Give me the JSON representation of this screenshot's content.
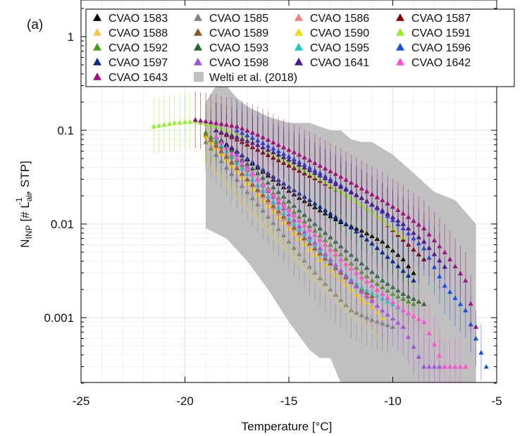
{
  "chart_data": {
    "type": "scatter",
    "panel_label": "(a)",
    "xlabel": "Temperature [°C]",
    "ylabel": {
      "main": "N",
      "sub": "INP",
      "rest": " [# L",
      "sub2": "air",
      "sup": "-1",
      "tail": " , STP]"
    },
    "xlim": [
      -25,
      -5
    ],
    "ylim": [
      0.0002,
      2
    ],
    "yscale": "log",
    "grid": true,
    "legend_position": "top",
    "x_ticks": [
      -25,
      -20,
      -15,
      -10,
      -5
    ],
    "x_tick_labels": [
      "-25",
      "-20",
      "-15",
      "-10",
      "-5"
    ],
    "y_ticks": [
      1,
      0.1,
      0.01,
      0.001
    ],
    "y_tick_labels": [
      "1",
      "0.1",
      "0.01",
      "0.001"
    ],
    "series": [
      {
        "name": "CVAO 1583",
        "color": "#000000",
        "data": [
          [
            -18.5,
            0.085
          ],
          [
            -17.5,
            0.06
          ],
          [
            -16.5,
            0.04
          ],
          [
            -15.5,
            0.027
          ],
          [
            -14.5,
            0.019
          ],
          [
            -13.5,
            0.014
          ],
          [
            -12.5,
            0.0105
          ],
          [
            -11.5,
            0.0085
          ],
          [
            -10.5,
            0.0065
          ],
          [
            -9.5,
            0.0042
          ],
          [
            -9.0,
            0.003
          ]
        ]
      },
      {
        "name": "CVAO 1585",
        "color": "#808080",
        "data": [
          [
            -19.0,
            0.075
          ],
          [
            -18.0,
            0.04
          ],
          [
            -17.0,
            0.022
          ],
          [
            -16.0,
            0.012
          ],
          [
            -15.0,
            0.0065
          ],
          [
            -14.0,
            0.0035
          ],
          [
            -13.0,
            0.002
          ],
          [
            -12.0,
            0.0012
          ],
          [
            -11.0,
            0.00095
          ],
          [
            -10.0,
            0.0008
          ]
        ]
      },
      {
        "name": "CVAO 1586",
        "color": "#f08080",
        "data": [
          [
            -19.0,
            0.095
          ],
          [
            -18.0,
            0.055
          ],
          [
            -17.0,
            0.03
          ],
          [
            -16.0,
            0.017
          ],
          [
            -15.0,
            0.01
          ],
          [
            -14.0,
            0.0062
          ],
          [
            -13.0,
            0.0038
          ],
          [
            -12.0,
            0.0024
          ],
          [
            -11.0,
            0.0016
          ]
        ]
      },
      {
        "name": "CVAO 1587",
        "color": "#8b0000",
        "data": [
          [
            -18.5,
            0.1
          ],
          [
            -17.5,
            0.08
          ],
          [
            -16.5,
            0.062
          ],
          [
            -15.5,
            0.048
          ],
          [
            -14.5,
            0.037
          ],
          [
            -13.5,
            0.029
          ],
          [
            -12.5,
            0.022
          ],
          [
            -11.5,
            0.016
          ],
          [
            -10.5,
            0.011
          ],
          [
            -9.5,
            0.0068
          ],
          [
            -8.5,
            0.0042
          ]
        ]
      },
      {
        "name": "CVAO 1588",
        "color": "#ffc04a",
        "data": [
          [
            -19.0,
            0.09
          ],
          [
            -18.0,
            0.05
          ],
          [
            -17.0,
            0.028
          ],
          [
            -16.0,
            0.016
          ],
          [
            -15.0,
            0.0092
          ],
          [
            -14.0,
            0.0055
          ],
          [
            -13.0,
            0.0032
          ],
          [
            -12.0,
            0.002
          ],
          [
            -11.5,
            0.0015
          ]
        ]
      },
      {
        "name": "CVAO 1589",
        "color": "#8b5a1a",
        "data": [
          [
            -19.0,
            0.09
          ],
          [
            -18.0,
            0.052
          ],
          [
            -17.0,
            0.03
          ],
          [
            -16.0,
            0.018
          ],
          [
            -15.0,
            0.0105
          ],
          [
            -14.0,
            0.0062
          ],
          [
            -13.0,
            0.0038
          ],
          [
            -12.0,
            0.0024
          ],
          [
            -11.0,
            0.0017
          ]
        ]
      },
      {
        "name": "CVAO 1590",
        "color": "#f0e000",
        "data": [
          [
            -19.0,
            0.085
          ],
          [
            -18.0,
            0.048
          ],
          [
            -17.0,
            0.027
          ],
          [
            -16.0,
            0.0155
          ],
          [
            -15.0,
            0.009
          ],
          [
            -14.0,
            0.0053
          ],
          [
            -13.0,
            0.0032
          ],
          [
            -12.0,
            0.002
          ],
          [
            -11.0,
            0.0013
          ],
          [
            -10.5,
            0.001
          ]
        ]
      },
      {
        "name": "CVAO 1591",
        "color": "#90f020",
        "data": [
          [
            -21.5,
            0.11
          ],
          [
            -20.5,
            0.12
          ],
          [
            -19.5,
            0.125
          ],
          [
            -18.5,
            0.11
          ],
          [
            -17.5,
            0.09
          ],
          [
            -16.5,
            0.07
          ],
          [
            -15.5,
            0.052
          ],
          [
            -14.5,
            0.04
          ],
          [
            -13.5,
            0.03
          ],
          [
            -12.5,
            0.022
          ],
          [
            -11.5,
            0.016
          ],
          [
            -10.5,
            0.011
          ],
          [
            -9.5,
            0.0072
          ]
        ]
      },
      {
        "name": "CVAO 1592",
        "color": "#4a9a18",
        "data": [
          [
            -19.0,
            0.095
          ],
          [
            -18.0,
            0.06
          ],
          [
            -17.0,
            0.038
          ],
          [
            -16.0,
            0.024
          ],
          [
            -15.0,
            0.015
          ],
          [
            -14.0,
            0.0095
          ],
          [
            -13.0,
            0.006
          ],
          [
            -12.0,
            0.0038
          ],
          [
            -11.0,
            0.0025
          ],
          [
            -10.0,
            0.0018
          ],
          [
            -9.0,
            0.0014
          ]
        ]
      },
      {
        "name": "CVAO 1593",
        "color": "#1a6a2a",
        "data": [
          [
            -18.5,
            0.085
          ],
          [
            -17.5,
            0.055
          ],
          [
            -16.5,
            0.035
          ],
          [
            -15.5,
            0.022
          ],
          [
            -14.5,
            0.014
          ],
          [
            -13.5,
            0.009
          ],
          [
            -12.5,
            0.0058
          ],
          [
            -11.5,
            0.0038
          ],
          [
            -10.5,
            0.0025
          ],
          [
            -9.5,
            0.0018
          ],
          [
            -8.5,
            0.0014
          ]
        ]
      },
      {
        "name": "CVAO 1595",
        "color": "#20c8c8",
        "data": [
          [
            -18.5,
            0.08
          ],
          [
            -17.5,
            0.045
          ],
          [
            -16.5,
            0.026
          ],
          [
            -15.5,
            0.015
          ],
          [
            -14.5,
            0.0088
          ],
          [
            -13.5,
            0.0052
          ],
          [
            -12.5,
            0.0032
          ],
          [
            -11.5,
            0.0021
          ],
          [
            -10.5,
            0.0016
          ],
          [
            -9.5,
            0.0012
          ]
        ]
      },
      {
        "name": "CVAO 1596",
        "color": "#1a50e0",
        "data": [
          [
            -17.5,
            0.1
          ],
          [
            -16.5,
            0.078
          ],
          [
            -15.5,
            0.06
          ],
          [
            -14.5,
            0.046
          ],
          [
            -13.5,
            0.035
          ],
          [
            -12.5,
            0.026
          ],
          [
            -11.5,
            0.019
          ],
          [
            -10.5,
            0.0135
          ],
          [
            -9.5,
            0.009
          ],
          [
            -8.5,
            0.0055
          ],
          [
            -7.5,
            0.0022
          ],
          [
            -6.5,
            0.0012
          ],
          [
            -5.5,
            0.0003
          ]
        ]
      },
      {
        "name": "CVAO 1597",
        "color": "#102a8a",
        "data": [
          [
            -18.0,
            0.07
          ],
          [
            -17.0,
            0.05
          ],
          [
            -16.0,
            0.035
          ],
          [
            -15.0,
            0.025
          ],
          [
            -14.0,
            0.018
          ],
          [
            -13.0,
            0.013
          ],
          [
            -12.0,
            0.0092
          ],
          [
            -11.0,
            0.0062
          ],
          [
            -10.0,
            0.004
          ],
          [
            -9.0,
            0.0025
          ]
        ]
      },
      {
        "name": "CVAO 1598",
        "color": "#a050e0",
        "data": [
          [
            -17.5,
            0.055
          ],
          [
            -16.5,
            0.03
          ],
          [
            -15.5,
            0.017
          ],
          [
            -14.5,
            0.0095
          ],
          [
            -13.5,
            0.0055
          ],
          [
            -12.5,
            0.0032
          ],
          [
            -11.5,
            0.0019
          ],
          [
            -10.5,
            0.0012
          ],
          [
            -9.5,
            0.0008
          ],
          [
            -8.5,
            0.0003
          ],
          [
            -7.5,
            0.0003
          ]
        ]
      },
      {
        "name": "CVAO 1641",
        "color": "#4a1a90",
        "data": [
          [
            -18.5,
            0.1
          ],
          [
            -17.5,
            0.085
          ],
          [
            -16.5,
            0.07
          ],
          [
            -15.5,
            0.055
          ],
          [
            -14.5,
            0.043
          ],
          [
            -13.5,
            0.033
          ],
          [
            -12.5,
            0.025
          ],
          [
            -11.5,
            0.019
          ],
          [
            -10.5,
            0.014
          ],
          [
            -9.5,
            0.01
          ],
          [
            -8.5,
            0.0065
          ],
          [
            -7.5,
            0.0035
          ]
        ]
      },
      {
        "name": "CVAO 1642",
        "color": "#ff50d0",
        "data": [
          [
            -18.5,
            0.085
          ],
          [
            -17.5,
            0.05
          ],
          [
            -16.5,
            0.03
          ],
          [
            -15.5,
            0.018
          ],
          [
            -14.5,
            0.011
          ],
          [
            -13.5,
            0.0068
          ],
          [
            -12.5,
            0.0042
          ],
          [
            -11.5,
            0.0027
          ],
          [
            -10.5,
            0.0018
          ],
          [
            -9.5,
            0.0012
          ],
          [
            -8.5,
            0.0009
          ],
          [
            -7.5,
            0.0003
          ],
          [
            -6.5,
            0.0003
          ]
        ]
      },
      {
        "name": "CVAO 1643",
        "color": "#a01080",
        "data": [
          [
            -19.5,
            0.13
          ],
          [
            -18.5,
            0.12
          ],
          [
            -17.5,
            0.11
          ],
          [
            -16.5,
            0.09
          ],
          [
            -15.5,
            0.07
          ],
          [
            -14.5,
            0.055
          ],
          [
            -13.5,
            0.042
          ],
          [
            -12.5,
            0.032
          ],
          [
            -11.5,
            0.024
          ],
          [
            -10.5,
            0.018
          ],
          [
            -9.5,
            0.013
          ],
          [
            -8.5,
            0.009
          ],
          [
            -7.5,
            0.005
          ],
          [
            -6.5,
            0.0025
          ],
          [
            -6.0,
            0.0008
          ]
        ]
      }
    ],
    "shaded_band": {
      "name": "Welti et al. (2018)",
      "color": "#c0c0c0",
      "upper": [
        [
          -19,
          0.2
        ],
        [
          -18.5,
          0.3
        ],
        [
          -18,
          0.3
        ],
        [
          -17.5,
          0.22
        ],
        [
          -17,
          0.18
        ],
        [
          -16,
          0.14
        ],
        [
          -15,
          0.12
        ],
        [
          -14,
          0.12
        ],
        [
          -13,
          0.1
        ],
        [
          -12.5,
          0.1
        ],
        [
          -12,
          0.08
        ],
        [
          -11.5,
          0.075
        ],
        [
          -11,
          0.075
        ],
        [
          -10,
          0.055
        ],
        [
          -9,
          0.035
        ],
        [
          -8,
          0.022
        ],
        [
          -7,
          0.018
        ],
        [
          -6,
          0.01
        ]
      ],
      "lower": [
        [
          -19,
          0.009
        ],
        [
          -18,
          0.007
        ],
        [
          -17,
          0.004
        ],
        [
          -16,
          0.002
        ],
        [
          -15,
          0.0009
        ],
        [
          -14,
          0.00045
        ],
        [
          -13.5,
          0.00037
        ],
        [
          -13,
          0.00037
        ],
        [
          -12.5,
          0.0002
        ],
        [
          -12,
          0.0002
        ],
        [
          -6,
          0.0002
        ]
      ]
    }
  }
}
